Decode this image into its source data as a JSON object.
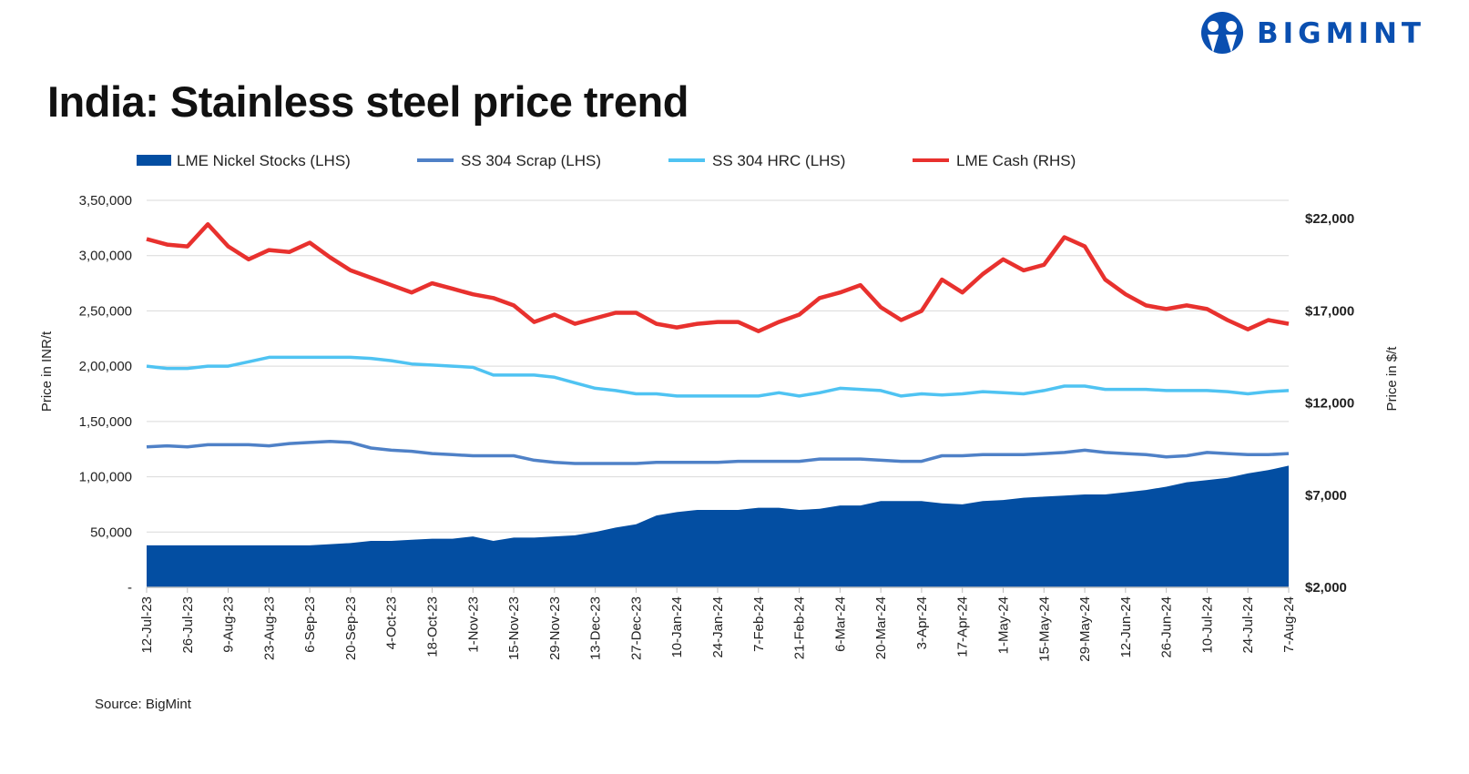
{
  "header": {
    "title": "India: Stainless steel price trend",
    "logo_text": "BIGMINT"
  },
  "footer": {
    "source": "Source: BigMint"
  },
  "colors": {
    "nickel": "#034ea2",
    "scrap": "#4f81c7",
    "hrc": "#4fc3f2",
    "lme": "#e8312e"
  },
  "chart_data": {
    "type": "line",
    "title": "India: Stainless steel price trend",
    "ylabel": "Price in INR/t",
    "y2label": "Price in $/t",
    "ylim": [
      0,
      350000
    ],
    "y2lim": [
      2000,
      23000
    ],
    "yticks": [
      "-",
      "50,000",
      "1,00,000",
      "1,50,000",
      "2,00,000",
      "2,50,000",
      "3,00,000",
      "3,50,000"
    ],
    "y2ticks": [
      "$2,000",
      "$7,000",
      "$12,000",
      "$17,000",
      "$22,000"
    ],
    "grid": true,
    "legend_placement": "top",
    "x_tick_labels": [
      "12-Jul-23",
      "26-Jul-23",
      "9-Aug-23",
      "23-Aug-23",
      "6-Sep-23",
      "20-Sep-23",
      "4-Oct-23",
      "18-Oct-23",
      "1-Nov-23",
      "15-Nov-23",
      "29-Nov-23",
      "13-Dec-23",
      "27-Dec-23",
      "10-Jan-24",
      "24-Jan-24",
      "7-Feb-24",
      "21-Feb-24",
      "6-Mar-24",
      "20-Mar-24",
      "3-Apr-24",
      "17-Apr-24",
      "1-May-24",
      "15-May-24",
      "29-May-24",
      "12-Jun-24",
      "26-Jun-24",
      "10-Jul-24",
      "24-Jul-24",
      "7-Aug-24"
    ],
    "x_note": "weekly points from 12-Jul-23 to 7-Aug-24",
    "series": [
      {
        "name": "LME Nickel Stocks (LHS)",
        "kind": "area",
        "axis": "left",
        "values": [
          38000,
          38000,
          38000,
          38000,
          38000,
          38000,
          38000,
          38000,
          38000,
          39000,
          40000,
          42000,
          42000,
          43000,
          44000,
          44000,
          46000,
          42000,
          45000,
          45000,
          46000,
          47000,
          50000,
          54000,
          57000,
          65000,
          68000,
          70000,
          70000,
          70000,
          72000,
          72000,
          70000,
          71000,
          74000,
          74000,
          78000,
          78000,
          78000,
          76000,
          75000,
          78000,
          79000,
          81000,
          82000,
          83000,
          84000,
          84000,
          86000,
          88000,
          91000,
          95000,
          97000,
          99000,
          103000,
          106000,
          110000
        ]
      },
      {
        "name": "SS 304 Scrap (LHS)",
        "kind": "line",
        "axis": "left",
        "values": [
          127000,
          128000,
          127000,
          129000,
          129000,
          129000,
          128000,
          130000,
          131000,
          132000,
          131000,
          126000,
          124000,
          123000,
          121000,
          120000,
          119000,
          119000,
          119000,
          115000,
          113000,
          112000,
          112000,
          112000,
          112000,
          113000,
          113000,
          113000,
          113000,
          114000,
          114000,
          114000,
          114000,
          116000,
          116000,
          116000,
          115000,
          114000,
          114000,
          119000,
          119000,
          120000,
          120000,
          120000,
          121000,
          122000,
          124000,
          122000,
          121000,
          120000,
          118000,
          119000,
          122000,
          121000,
          120000,
          120000,
          121000
        ]
      },
      {
        "name": "SS 304 HRC (LHS)",
        "kind": "line",
        "axis": "left",
        "values": [
          200000,
          198000,
          198000,
          200000,
          200000,
          204000,
          208000,
          208000,
          208000,
          208000,
          208000,
          207000,
          205000,
          202000,
          201000,
          200000,
          199000,
          192000,
          192000,
          192000,
          190000,
          185000,
          180000,
          178000,
          175000,
          175000,
          173000,
          173000,
          173000,
          173000,
          173000,
          176000,
          173000,
          176000,
          180000,
          179000,
          178000,
          173000,
          175000,
          174000,
          175000,
          177000,
          176000,
          175000,
          178000,
          182000,
          182000,
          179000,
          179000,
          179000,
          178000,
          178000,
          178000,
          177000,
          175000,
          177000,
          178000
        ]
      },
      {
        "name": "LME Cash (RHS)",
        "kind": "line",
        "axis": "right",
        "values": [
          20900,
          20600,
          20500,
          21700,
          20500,
          19800,
          20300,
          20200,
          20700,
          19900,
          19200,
          18800,
          18400,
          18000,
          18500,
          18200,
          17900,
          17700,
          17300,
          16400,
          16800,
          16300,
          16600,
          16900,
          16900,
          16300,
          16100,
          16300,
          16400,
          16400,
          15900,
          16400,
          16800,
          17700,
          18000,
          18400,
          17200,
          16500,
          17000,
          18700,
          18000,
          19000,
          19800,
          19200,
          19500,
          21000,
          20500,
          18700,
          17900,
          17300,
          17100,
          17300,
          17100,
          16500,
          16000,
          16500,
          16300
        ]
      }
    ]
  }
}
